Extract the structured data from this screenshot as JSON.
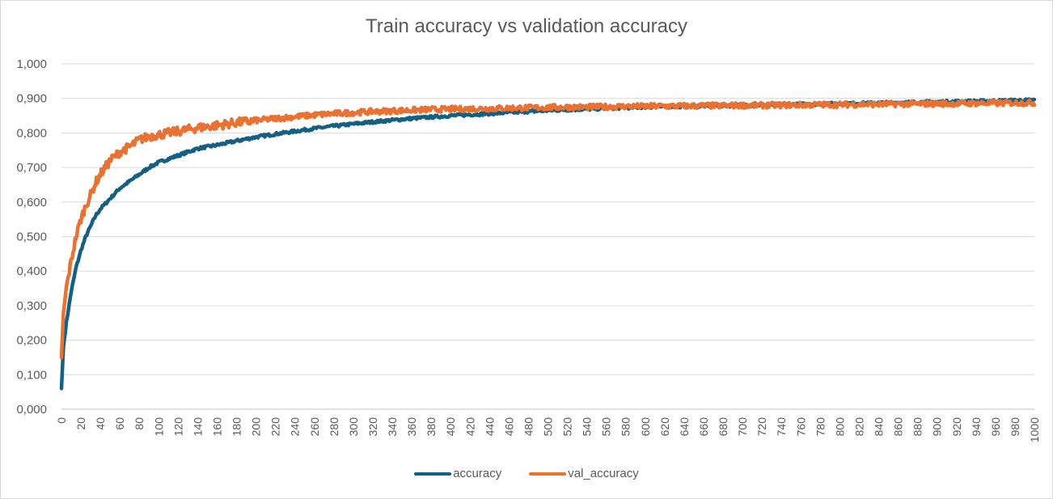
{
  "chart_data": {
    "type": "line",
    "title": "Train accuracy vs validation accuracy",
    "xlabel": "",
    "ylabel": "",
    "xlim": [
      0,
      1000
    ],
    "ylim": [
      0,
      1
    ],
    "grid": true,
    "legend_position": "bottom",
    "y_tick_labels": [
      "0,000",
      "0,100",
      "0,200",
      "0,300",
      "0,400",
      "0,500",
      "0,600",
      "0,700",
      "0,800",
      "0,900",
      "1,000"
    ],
    "x_tick_labels": [
      "0",
      "20",
      "40",
      "60",
      "80",
      "100",
      "120",
      "140",
      "160",
      "180",
      "200",
      "220",
      "240",
      "260",
      "280",
      "300",
      "320",
      "340",
      "360",
      "380",
      "400",
      "420",
      "440",
      "460",
      "480",
      "500",
      "520",
      "540",
      "560",
      "580",
      "600",
      "620",
      "640",
      "660",
      "680",
      "700",
      "720",
      "740",
      "760",
      "780",
      "800",
      "820",
      "840",
      "860",
      "880",
      "900",
      "920",
      "940",
      "960",
      "980",
      "1000"
    ],
    "x": [
      0,
      2,
      5,
      10,
      15,
      20,
      25,
      30,
      35,
      40,
      50,
      60,
      70,
      80,
      90,
      100,
      120,
      140,
      160,
      180,
      200,
      220,
      240,
      260,
      280,
      300,
      320,
      340,
      360,
      380,
      400,
      420,
      440,
      460,
      480,
      500,
      520,
      540,
      560,
      580,
      600,
      620,
      640,
      660,
      680,
      700,
      720,
      740,
      760,
      780,
      800,
      820,
      840,
      860,
      880,
      900,
      920,
      940,
      960,
      980,
      1000
    ],
    "series": [
      {
        "name": "accuracy",
        "color": "#156082",
        "values": [
          0.06,
          0.18,
          0.25,
          0.34,
          0.41,
          0.46,
          0.5,
          0.53,
          0.56,
          0.58,
          0.61,
          0.64,
          0.66,
          0.68,
          0.7,
          0.715,
          0.735,
          0.755,
          0.765,
          0.777,
          0.788,
          0.797,
          0.805,
          0.813,
          0.82,
          0.826,
          0.832,
          0.837,
          0.842,
          0.846,
          0.85,
          0.853,
          0.856,
          0.859,
          0.862,
          0.865,
          0.867,
          0.869,
          0.871,
          0.873,
          0.875,
          0.876,
          0.877,
          0.878,
          0.879,
          0.88,
          0.881,
          0.882,
          0.883,
          0.884,
          0.885,
          0.886,
          0.887,
          0.888,
          0.889,
          0.89,
          0.891,
          0.892,
          0.893,
          0.894,
          0.895
        ]
      },
      {
        "name": "val_accuracy",
        "color": "#E97132",
        "values": [
          0.15,
          0.28,
          0.35,
          0.43,
          0.5,
          0.55,
          0.59,
          0.62,
          0.655,
          0.68,
          0.72,
          0.745,
          0.76,
          0.78,
          0.79,
          0.795,
          0.805,
          0.815,
          0.822,
          0.83,
          0.836,
          0.842,
          0.847,
          0.852,
          0.856,
          0.859,
          0.862,
          0.864,
          0.866,
          0.868,
          0.869,
          0.87,
          0.871,
          0.872,
          0.873,
          0.874,
          0.875,
          0.875,
          0.876,
          0.877,
          0.877,
          0.878,
          0.878,
          0.879,
          0.879,
          0.88,
          0.88,
          0.881,
          0.881,
          0.882,
          0.882,
          0.883,
          0.883,
          0.884,
          0.884,
          0.885,
          0.885,
          0.886,
          0.886,
          0.887,
          0.887
        ]
      }
    ]
  }
}
